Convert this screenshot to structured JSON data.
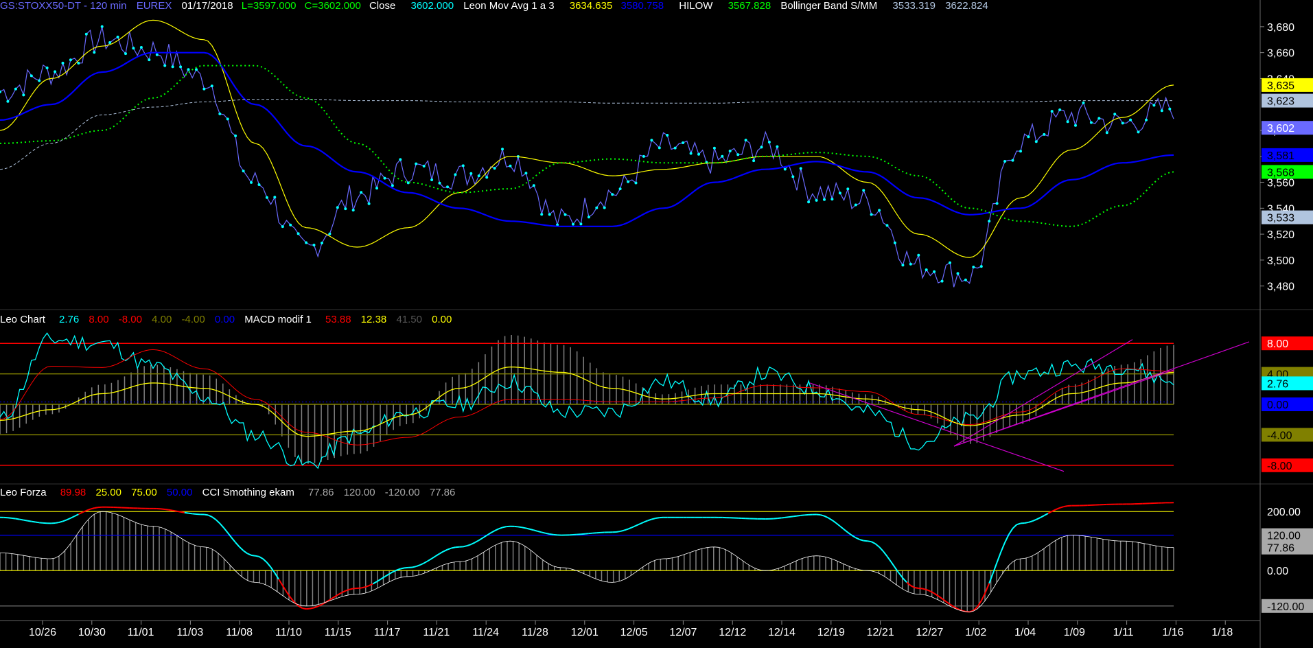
{
  "header": {
    "symbol": "GS:STOXX50-DT - 120 min",
    "exchange": "EUREX",
    "date": "01/17/2018",
    "low": "L=3597.000",
    "close": "C=3602.000",
    "close_label": "Close",
    "close_value": "3602.000",
    "mov_avg_label": "Leon Mov Avg 1 a 3",
    "mov_avg_1": "3634.635",
    "mov_avg_2": "3580.758",
    "hilow_label": "HILOW",
    "hilow_value": "3567.828",
    "bb_label": "Bollinger Band S/MM",
    "bb_low": "3533.319",
    "bb_high": "3622.824"
  },
  "panel2_header": {
    "name": "Leo Chart",
    "v1": "2.76",
    "v2": "8.00",
    "v3": "-8.00",
    "v4": "4.00",
    "v5": "-4.00",
    "v6": "0.00",
    "macd_label": "MACD modif 1",
    "m1": "53.88",
    "m2": "12.38",
    "m3": "41.50",
    "m4": "0.00"
  },
  "panel3_header": {
    "name": "Leo Forza",
    "v1": "89.98",
    "v2": "25.00",
    "v3": "75.00",
    "v4": "50.00",
    "cci_label": "CCI Smothing ekam",
    "c1": "77.86",
    "c2": "120.00",
    "c3": "-120.00",
    "c4": "77.86"
  },
  "x_axis": [
    "10/26",
    "10/30",
    "11/01",
    "11/03",
    "11/08",
    "11/10",
    "11/15",
    "11/17",
    "11/21",
    "11/24",
    "11/28",
    "12/01",
    "12/05",
    "12/07",
    "12/12",
    "12/14",
    "12/19",
    "12/21",
    "12/27",
    "1/02",
    "1/04",
    "1/09",
    "1/11",
    "1/16",
    "1/18"
  ],
  "price_axis": [
    "3,680",
    "3,660",
    "3,640",
    "3,600",
    "3,580",
    "3,560",
    "3,540",
    "3,520",
    "3,500",
    "3,480"
  ],
  "price_tags": [
    {
      "text": "3,635",
      "bg": "#ffff00",
      "fg": "#000000",
      "v": 3635
    },
    {
      "text": "3,623",
      "bg": "#b0c4de",
      "fg": "#000000",
      "v": 3623
    },
    {
      "text": "3,602",
      "bg": "#6a6aff",
      "fg": "#ffffff",
      "v": 3602
    },
    {
      "text": "3,581",
      "bg": "#0000ff",
      "fg": "#000000",
      "v": 3581
    },
    {
      "text": "3,568",
      "bg": "#00ff00",
      "fg": "#000000",
      "v": 3568
    },
    {
      "text": "3,533",
      "bg": "#b0c4de",
      "fg": "#000000",
      "v": 3533
    }
  ],
  "osc_tags": [
    {
      "text": "8.00",
      "bg": "#ff0000",
      "fg": "#ffffff",
      "v": 8
    },
    {
      "text": "4.00",
      "bg": "#808000",
      "fg": "#000000",
      "v": 4
    },
    {
      "text": "2.76",
      "bg": "#00ffff",
      "fg": "#000000",
      "v": 2.76
    },
    {
      "text": "0.00",
      "bg": "#0000ff",
      "fg": "#000000",
      "v": 0
    },
    {
      "text": "-4.00",
      "bg": "#808000",
      "fg": "#000000",
      "v": -4
    },
    {
      "text": "-8.00",
      "bg": "#ff0000",
      "fg": "#000000",
      "v": -8
    }
  ],
  "cci_tags": [
    {
      "text": "200.00",
      "bg": "#000000",
      "fg": "#ffffff",
      "v": 200
    },
    {
      "text": "120.00",
      "bg": "#a9a9a9",
      "fg": "#000000",
      "v": 120
    },
    {
      "text": "77.86",
      "bg": "#a9a9a9",
      "fg": "#000000",
      "v": 77.86
    },
    {
      "text": "0.00",
      "bg": "#000000",
      "fg": "#ffffff",
      "v": 0
    },
    {
      "text": "-120.00",
      "bg": "#a9a9a9",
      "fg": "#000000",
      "v": -120
    }
  ],
  "colors": {
    "close": "#00ffff",
    "close_line": "#6a6aff",
    "ma_fast": "#ffff00",
    "ma_slow": "#0000ff",
    "hilow": "#00ff00",
    "hilow_red": "#ff0000",
    "bollinger": "#b0c4de",
    "osc": "#00ffff",
    "osc_signal": "#ff0000",
    "osc_slow": "#ffff00",
    "histogram": "#808080",
    "trendline": "#cc00cc"
  },
  "chart_data": [
    {
      "type": "line",
      "title": "GS:STOXX50-DT - 120 min",
      "ylim": [
        3465,
        3690
      ],
      "x": [
        "10/26",
        "10/30",
        "11/01",
        "11/03",
        "11/08",
        "11/10",
        "11/15",
        "11/17",
        "11/21",
        "11/24",
        "11/28",
        "12/01",
        "12/05",
        "12/07",
        "12/12",
        "12/14",
        "12/19",
        "12/21",
        "12/27",
        "1/02",
        "1/04",
        "1/09",
        "1/11",
        "1/16"
      ],
      "series": [
        {
          "name": "Close",
          "values": [
            3630,
            3645,
            3670,
            3662,
            3640,
            3560,
            3508,
            3550,
            3570,
            3565,
            3580,
            3530,
            3552,
            3588,
            3576,
            3588,
            3553,
            3545,
            3495,
            3488,
            3592,
            3612,
            3605,
            3618
          ]
        },
        {
          "name": "Leon Mov Avg 1",
          "values": [
            3600,
            3640,
            3665,
            3685,
            3670,
            3590,
            3525,
            3510,
            3525,
            3552,
            3580,
            3575,
            3565,
            3570,
            3575,
            3580,
            3580,
            3560,
            3520,
            3502,
            3548,
            3585,
            3610,
            3635
          ]
        },
        {
          "name": "Leon Mov Avg 3",
          "values": [
            3608,
            3620,
            3645,
            3660,
            3660,
            3620,
            3588,
            3568,
            3552,
            3540,
            3530,
            3526,
            3526,
            3540,
            3560,
            3570,
            3576,
            3568,
            3548,
            3535,
            3540,
            3562,
            3575,
            3581
          ]
        },
        {
          "name": "HILOW",
          "values": [
            3590,
            3592,
            3600,
            3625,
            3650,
            3650,
            3625,
            3590,
            3560,
            3552,
            3555,
            3575,
            3578,
            3575,
            3575,
            3580,
            3583,
            3580,
            3565,
            3540,
            3530,
            3526,
            3542,
            3568
          ]
        },
        {
          "name": "Bollinger Band S/MM",
          "values": [
            3570,
            3590,
            3612,
            3618,
            3622,
            3624,
            3624,
            3623,
            3623,
            3622,
            3622,
            3622,
            3621,
            3621,
            3621,
            3622,
            3622,
            3622,
            3622,
            3622,
            3622,
            3623,
            3623,
            3623
          ]
        }
      ]
    },
    {
      "type": "line",
      "title": "Leo Chart",
      "ylim": [
        -10,
        10
      ],
      "x": [
        "10/26",
        "10/30",
        "11/01",
        "11/03",
        "11/08",
        "11/10",
        "11/15",
        "11/17",
        "11/21",
        "11/24",
        "11/28",
        "12/01",
        "12/05",
        "12/07",
        "12/12",
        "12/14",
        "12/19",
        "12/21",
        "12/27",
        "1/02",
        "1/04",
        "1/09",
        "1/11",
        "1/16"
      ],
      "series": [
        {
          "name": "Leo Chart",
          "values": [
            -2,
            8.5,
            8,
            5,
            1,
            -4,
            -8,
            -4,
            -1,
            0,
            3,
            -1,
            -1,
            3,
            0.5,
            4,
            2,
            -1,
            -5,
            -2,
            4,
            5,
            5,
            3
          ]
        },
        {
          "name": "MACD modif 1",
          "values": [
            -3,
            -1,
            2,
            4,
            3,
            0,
            -6,
            -5,
            -2,
            3,
            7,
            6,
            3,
            1,
            2,
            2,
            2,
            1,
            -1,
            -4,
            -2,
            2,
            4,
            6
          ]
        }
      ]
    },
    {
      "type": "line",
      "title": "Leo Forza",
      "ylim": [
        -160,
        240
      ],
      "x": [
        "10/26",
        "10/30",
        "11/01",
        "11/03",
        "11/08",
        "11/10",
        "11/15",
        "11/17",
        "11/21",
        "11/24",
        "11/28",
        "12/01",
        "12/05",
        "12/07",
        "12/12",
        "12/14",
        "12/19",
        "12/21",
        "12/27",
        "1/02",
        "1/04",
        "1/09",
        "1/11",
        "1/16"
      ],
      "series": [
        {
          "name": "Leo Forza",
          "values": [
            180,
            160,
            215,
            210,
            190,
            50,
            -130,
            -60,
            10,
            80,
            150,
            120,
            130,
            180,
            180,
            175,
            190,
            100,
            -60,
            -140,
            160,
            220,
            225,
            230
          ]
        },
        {
          "name": "CCI Smothing ekam",
          "values": [
            60,
            40,
            200,
            150,
            80,
            -40,
            -120,
            -80,
            -20,
            30,
            100,
            10,
            -40,
            40,
            80,
            0,
            50,
            0,
            -80,
            -140,
            40,
            120,
            100,
            78
          ]
        }
      ]
    }
  ]
}
